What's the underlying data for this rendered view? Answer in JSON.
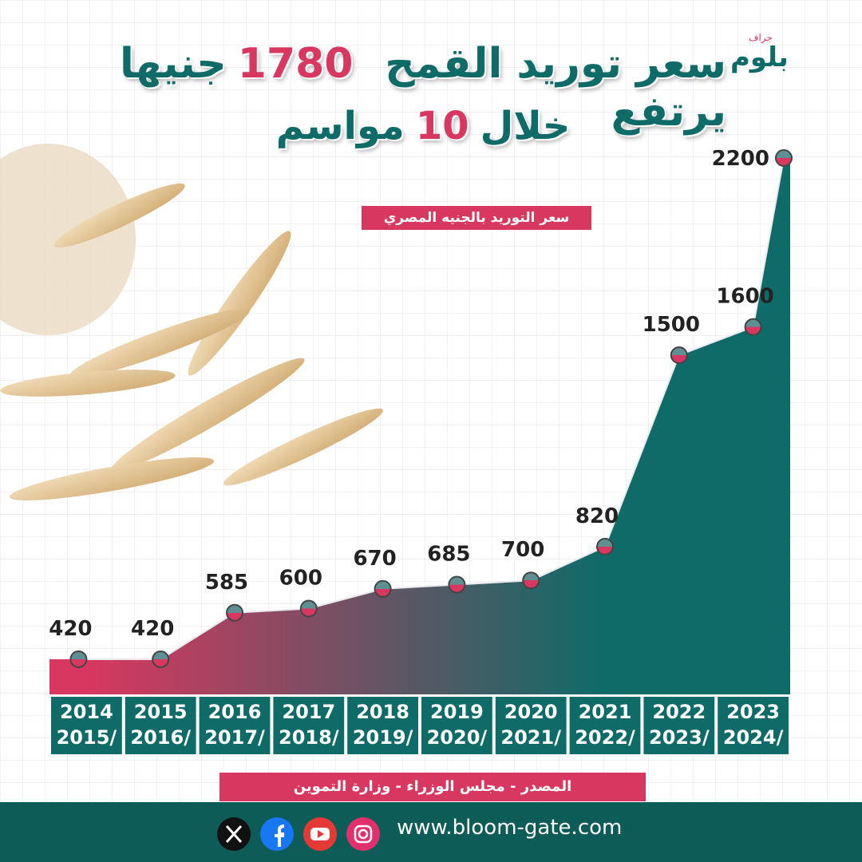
{
  "chart_data": {
    "type": "area",
    "title_lines": [
      [
        "سعر توريد القمح يرتفع",
        "1780",
        "جنيها"
      ],
      [
        "خلال",
        "10",
        "مواسم"
      ]
    ],
    "legend_label": "سعر التوريد بالجنيه المصري",
    "source": "المصدر - مجلس الوزراء - وزارة التموين",
    "website": "www.bloom-gate.com",
    "logo": "بلوم",
    "logo_sub": "جراف",
    "categories": [
      [
        "2014",
        "2015/"
      ],
      [
        "2015",
        "2016/"
      ],
      [
        "2016",
        "2017/"
      ],
      [
        "2017",
        "2018/"
      ],
      [
        "2018",
        "2019/"
      ],
      [
        "2019",
        "2020/"
      ],
      [
        "2020",
        "2021/"
      ],
      [
        "2021",
        "2022/"
      ],
      [
        "2022",
        "2023/"
      ],
      [
        "2023",
        "2024/"
      ],
      null
    ],
    "values": [
      420,
      420,
      585,
      600,
      670,
      685,
      700,
      820,
      1500,
      1600,
      2200
    ],
    "colors": {
      "start": "#d8375f",
      "end": "#0e6b68"
    }
  }
}
